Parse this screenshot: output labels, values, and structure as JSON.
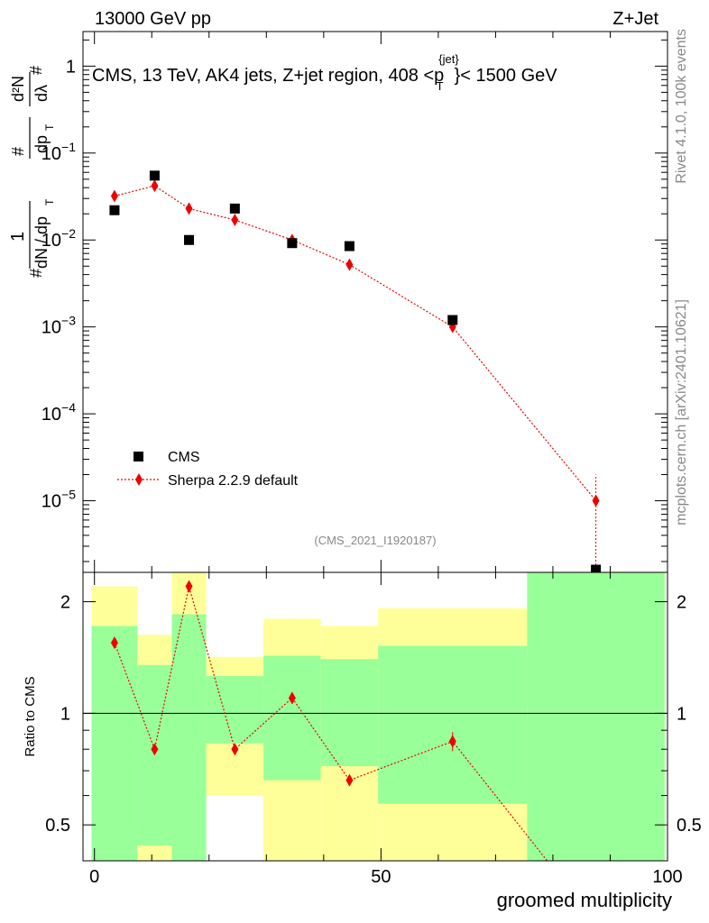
{
  "header": {
    "left": "13000 GeV pp",
    "right": "Z+Jet"
  },
  "side_labels": {
    "rivet": "Rivet 4.1.0,  100k events",
    "mcplots": "mcplots.cern.ch [arXiv:2401.10621]"
  },
  "colors": {
    "data": "#000000",
    "mc": "#ee0000",
    "band_inner": "#99ff99",
    "band_outer": "#ffff99",
    "watermark": "#888888"
  },
  "chart_data": [
    {
      "type": "scatter",
      "id": "main",
      "title": "CMS, 13 TeV, AK4 jets, Z+jet region, 408 <p",
      "title_sup": "{jet}",
      "title_sub": "T",
      "title_end": "}< 1500 GeV",
      "watermark": "(CMS_2021_I1920187)",
      "yscale": "log",
      "ylim": [
        1.5e-06,
        2.5
      ],
      "xlim": [
        -2,
        100
      ],
      "ytick_labels": [
        {
          "base": "1",
          "exp": ""
        },
        {
          "base": "10",
          "exp": "−1"
        },
        {
          "base": "10",
          "exp": "−2"
        },
        {
          "base": "10",
          "exp": "−3"
        },
        {
          "base": "10",
          "exp": "−4"
        },
        {
          "base": "10",
          "exp": "−5"
        }
      ],
      "ytick_values": [
        1,
        0.1,
        0.01,
        0.001,
        0.0001,
        1e-05
      ],
      "ylabel_parts": [
        "1",
        "dN / dp",
        "d²N",
        "dp",
        "dλ",
        "#",
        "T",
        "#",
        "T",
        "#"
      ],
      "legend": {
        "position": "bottom-left",
        "entries": [
          "CMS",
          "Sherpa 2.2.9 default"
        ]
      },
      "series": [
        {
          "name": "CMS",
          "x": [
            3.5,
            10.5,
            16.5,
            24.5,
            34.5,
            44.5,
            62.5,
            87.5
          ],
          "y": [
            0.022,
            0.055,
            0.01,
            0.023,
            0.0092,
            0.0085,
            0.0012,
            1.5e-06
          ]
        },
        {
          "name": "Sherpa 2.2.9 default",
          "x": [
            3.5,
            10.5,
            16.5,
            24.5,
            34.5,
            44.5,
            62.5,
            87.5
          ],
          "y": [
            0.032,
            0.042,
            0.023,
            0.017,
            0.01,
            0.0052,
            0.001,
            1e-05
          ],
          "yerr_low": [
            0.0015,
            0.002,
            0.001,
            0.0008,
            0.0005,
            0.0003,
            6e-05,
            1e-05
          ],
          "yerr_high": [
            0.0015,
            0.002,
            0.001,
            0.0008,
            0.0005,
            0.0003,
            6e-05,
            1e-05
          ]
        }
      ]
    },
    {
      "type": "ratio",
      "id": "ratio",
      "ylabel": "Ratio to CMS",
      "xlabel": "groomed multiplicity",
      "yscale": "log",
      "ylim": [
        0.4,
        2.4
      ],
      "xlim": [
        -2,
        100
      ],
      "ytick_values": [
        0.5,
        1,
        2
      ],
      "ytick_labels": [
        "0.5",
        "1",
        "2"
      ],
      "xtick_values": [
        0,
        50,
        100
      ],
      "xtick_labels": [
        "0",
        "50",
        "100"
      ],
      "reference_line": 1,
      "bands": [
        {
          "x_low": -0.5,
          "x_high": 7.5,
          "inner": [
            0.1,
            1.72
          ],
          "outer": [
            0.1,
            2.2
          ]
        },
        {
          "x_low": 7.5,
          "x_high": 13.5,
          "inner": [
            0.44,
            1.35
          ],
          "outer": [
            0.1,
            1.63
          ]
        },
        {
          "x_low": 13.5,
          "x_high": 19.5,
          "inner": [
            0.1,
            1.85
          ],
          "outer": [
            0.1,
            2.4
          ]
        },
        {
          "x_low": 19.5,
          "x_high": 29.5,
          "inner": [
            0.83,
            1.26
          ],
          "outer": [
            0.6,
            1.42
          ]
        },
        {
          "x_low": 29.5,
          "x_high": 39.5,
          "inner": [
            0.66,
            1.43
          ],
          "outer": [
            0.1,
            1.8
          ]
        },
        {
          "x_low": 39.5,
          "x_high": 49.5,
          "inner": [
            0.72,
            1.4
          ],
          "outer": [
            0.1,
            1.72
          ]
        },
        {
          "x_low": 49.5,
          "x_high": 75.5,
          "inner": [
            0.57,
            1.52
          ],
          "outer": [
            0.1,
            1.92
          ]
        },
        {
          "x_low": 75.5,
          "x_high": 99.5,
          "inner": [
            0.1,
            2.4
          ],
          "outer": [
            0.1,
            2.4
          ]
        }
      ],
      "series": [
        {
          "name": "Sherpa 2.2.9 default",
          "x": [
            3.5,
            10.5,
            16.5,
            24.5,
            34.5,
            44.5,
            62.5,
            79.0
          ],
          "y": [
            1.55,
            0.8,
            2.2,
            0.8,
            1.1,
            0.66,
            0.84,
            0.4
          ],
          "yerr": [
            0.04,
            0.02,
            0.07,
            0.02,
            0.04,
            0.02,
            0.05,
            0.0
          ]
        }
      ]
    }
  ]
}
